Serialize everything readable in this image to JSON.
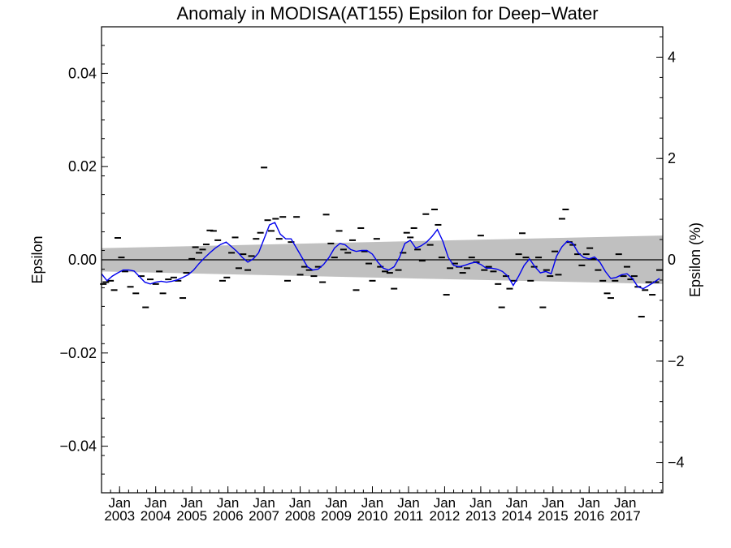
{
  "chart_data": {
    "type": "line",
    "title": "Anomaly in MODISA(AT155) Epsilon for Deep−Water",
    "ylabel": "Epsilon",
    "ylabel_right": "Epsilon (%)",
    "xlabel": "",
    "ylim": [
      -0.05,
      0.05
    ],
    "ylim_right": [
      -4.6,
      4.6
    ],
    "xlim": [
      2002.5,
      2018.04
    ],
    "yticks": [
      {
        "v": 0.04,
        "label": "0.04"
      },
      {
        "v": 0.02,
        "label": "0.02"
      },
      {
        "v": 0.0,
        "label": "0.00"
      },
      {
        "v": -0.02,
        "label": "−0.02"
      },
      {
        "v": -0.04,
        "label": "−0.04"
      }
    ],
    "yticks_right": [
      {
        "v": 4,
        "label": "4"
      },
      {
        "v": 2,
        "label": "2"
      },
      {
        "v": 0,
        "label": "0"
      },
      {
        "v": -2,
        "label": "−2"
      },
      {
        "v": -4,
        "label": "−4"
      }
    ],
    "xticks": [
      {
        "x": 2003.0,
        "month": "Jan",
        "year": "2003"
      },
      {
        "x": 2004.0,
        "month": "Jan",
        "year": "2004"
      },
      {
        "x": 2005.0,
        "month": "Jan",
        "year": "2005"
      },
      {
        "x": 2006.0,
        "month": "Jan",
        "year": "2006"
      },
      {
        "x": 2007.0,
        "month": "Jan",
        "year": "2007"
      },
      {
        "x": 2008.0,
        "month": "Jan",
        "year": "2008"
      },
      {
        "x": 2009.0,
        "month": "Jan",
        "year": "2009"
      },
      {
        "x": 2010.0,
        "month": "Jan",
        "year": "2010"
      },
      {
        "x": 2011.0,
        "month": "Jan",
        "year": "2011"
      },
      {
        "x": 2012.0,
        "month": "Jan",
        "year": "2012"
      },
      {
        "x": 2013.0,
        "month": "Jan",
        "year": "2013"
      },
      {
        "x": 2014.0,
        "month": "Jan",
        "year": "2014"
      },
      {
        "x": 2015.0,
        "month": "Jan",
        "year": "2015"
      },
      {
        "x": 2016.0,
        "month": "Jan",
        "year": "2016"
      },
      {
        "x": 2017.0,
        "month": "Jan",
        "year": "2017"
      }
    ],
    "band": {
      "upper": [
        [
          2002.5,
          0.0025
        ],
        [
          2018.04,
          0.0052
        ]
      ],
      "lower": [
        [
          2002.5,
          -0.0025
        ],
        [
          2018.04,
          -0.0052
        ]
      ],
      "color": "#c0c0c0"
    },
    "zero_line": 0.0,
    "series": [
      {
        "color": "#0000ee",
        "points": [
          [
            2002.5,
            -0.003
          ],
          [
            2002.65,
            -0.0045
          ],
          [
            2002.8,
            -0.0035
          ],
          [
            2002.95,
            -0.0028
          ],
          [
            2003.1,
            -0.0022
          ],
          [
            2003.25,
            -0.0022
          ],
          [
            2003.4,
            -0.0024
          ],
          [
            2003.55,
            -0.0036
          ],
          [
            2003.7,
            -0.0048
          ],
          [
            2003.85,
            -0.0052
          ],
          [
            2004.0,
            -0.0048
          ],
          [
            2004.15,
            -0.0046
          ],
          [
            2004.3,
            -0.0048
          ],
          [
            2004.45,
            -0.0046
          ],
          [
            2004.6,
            -0.0043
          ],
          [
            2004.75,
            -0.0038
          ],
          [
            2004.9,
            -0.0032
          ],
          [
            2005.05,
            -0.0022
          ],
          [
            2005.2,
            -0.0008
          ],
          [
            2005.35,
            0.0004
          ],
          [
            2005.5,
            0.0015
          ],
          [
            2005.65,
            0.0025
          ],
          [
            2005.8,
            0.0033
          ],
          [
            2005.95,
            0.0038
          ],
          [
            2006.1,
            0.0028
          ],
          [
            2006.25,
            0.0018
          ],
          [
            2006.4,
            0.0005
          ],
          [
            2006.55,
            -0.0005
          ],
          [
            2006.7,
            0.0002
          ],
          [
            2006.85,
            0.0015
          ],
          [
            2007.0,
            0.0045
          ],
          [
            2007.15,
            0.0075
          ],
          [
            2007.3,
            0.008
          ],
          [
            2007.45,
            0.0055
          ],
          [
            2007.6,
            0.0045
          ],
          [
            2007.75,
            0.0045
          ],
          [
            2007.9,
            0.0025
          ],
          [
            2008.05,
            0.0005
          ],
          [
            2008.2,
            -0.0015
          ],
          [
            2008.35,
            -0.0022
          ],
          [
            2008.5,
            -0.002
          ],
          [
            2008.65,
            -0.001
          ],
          [
            2008.8,
            0.0005
          ],
          [
            2008.95,
            0.0025
          ],
          [
            2009.1,
            0.0035
          ],
          [
            2009.25,
            0.0032
          ],
          [
            2009.4,
            0.0022
          ],
          [
            2009.55,
            0.0018
          ],
          [
            2009.7,
            0.002
          ],
          [
            2009.85,
            0.002
          ],
          [
            2010.0,
            0.0012
          ],
          [
            2010.15,
            -0.0005
          ],
          [
            2010.3,
            -0.0018
          ],
          [
            2010.45,
            -0.0022
          ],
          [
            2010.6,
            -0.0015
          ],
          [
            2010.75,
            0.0005
          ],
          [
            2010.9,
            0.0035
          ],
          [
            2011.05,
            0.0042
          ],
          [
            2011.2,
            0.0025
          ],
          [
            2011.35,
            0.003
          ],
          [
            2011.5,
            0.0038
          ],
          [
            2011.65,
            0.005
          ],
          [
            2011.8,
            0.0065
          ],
          [
            2011.95,
            0.004
          ],
          [
            2012.1,
            0.0005
          ],
          [
            2012.25,
            -0.0012
          ],
          [
            2012.4,
            -0.0015
          ],
          [
            2012.55,
            -0.0012
          ],
          [
            2012.7,
            -0.0008
          ],
          [
            2012.85,
            -0.0005
          ],
          [
            2013.0,
            -0.001
          ],
          [
            2013.15,
            -0.0018
          ],
          [
            2013.3,
            -0.0018
          ],
          [
            2013.45,
            -0.002
          ],
          [
            2013.6,
            -0.0025
          ],
          [
            2013.75,
            -0.0035
          ],
          [
            2013.9,
            -0.0055
          ],
          [
            2014.05,
            -0.0035
          ],
          [
            2014.2,
            -0.0012
          ],
          [
            2014.35,
            0.0002
          ],
          [
            2014.5,
            -0.0015
          ],
          [
            2014.65,
            -0.0028
          ],
          [
            2014.8,
            -0.0025
          ],
          [
            2014.95,
            -0.003
          ],
          [
            2015.1,
            0.0008
          ],
          [
            2015.25,
            0.0028
          ],
          [
            2015.4,
            0.004
          ],
          [
            2015.55,
            0.0035
          ],
          [
            2015.7,
            0.0015
          ],
          [
            2015.85,
            0.0005
          ],
          [
            2016.0,
            0.0002
          ],
          [
            2016.15,
            0.0006
          ],
          [
            2016.3,
            -0.0005
          ],
          [
            2016.45,
            -0.0025
          ],
          [
            2016.6,
            -0.004
          ],
          [
            2016.75,
            -0.0038
          ],
          [
            2016.9,
            -0.0032
          ],
          [
            2017.05,
            -0.003
          ],
          [
            2017.2,
            -0.004
          ],
          [
            2017.35,
            -0.0058
          ],
          [
            2017.5,
            -0.0062
          ],
          [
            2017.65,
            -0.0055
          ],
          [
            2017.8,
            -0.0048
          ],
          [
            2017.95,
            -0.004
          ]
        ]
      }
    ],
    "scatter_points": [
      [
        2002.55,
        -0.0052
      ],
      [
        2002.62,
        -0.0048
      ],
      [
        2002.75,
        -0.0045
      ],
      [
        2002.85,
        -0.0065
      ],
      [
        2002.95,
        0.0047
      ],
      [
        2003.05,
        0.0005
      ],
      [
        2003.15,
        -0.0025
      ],
      [
        2003.3,
        -0.0058
      ],
      [
        2003.45,
        -0.0072
      ],
      [
        2003.6,
        -0.0035
      ],
      [
        2003.72,
        -0.0102
      ],
      [
        2003.85,
        -0.0042
      ],
      [
        2004.0,
        -0.0052
      ],
      [
        2004.1,
        -0.0025
      ],
      [
        2004.2,
        -0.0072
      ],
      [
        2004.35,
        -0.0042
      ],
      [
        2004.5,
        -0.0038
      ],
      [
        2004.62,
        -0.0045
      ],
      [
        2004.75,
        -0.0082
      ],
      [
        2004.85,
        -0.0028
      ],
      [
        2005.0,
        0.0002
      ],
      [
        2005.1,
        0.0027
      ],
      [
        2005.2,
        0.0015
      ],
      [
        2005.3,
        0.0022
      ],
      [
        2005.4,
        0.0033
      ],
      [
        2005.5,
        0.0063
      ],
      [
        2005.6,
        0.0062
      ],
      [
        2005.72,
        0.0042
      ],
      [
        2005.85,
        -0.0045
      ],
      [
        2005.97,
        -0.0038
      ],
      [
        2006.1,
        0.0015
      ],
      [
        2006.2,
        0.0048
      ],
      [
        2006.3,
        -0.0018
      ],
      [
        2006.42,
        0.0012
      ],
      [
        2006.55,
        -0.0022
      ],
      [
        2006.65,
        0.0008
      ],
      [
        2006.78,
        0.0045
      ],
      [
        2006.9,
        0.0058
      ],
      [
        2007.0,
        0.0198
      ],
      [
        2007.1,
        0.0085
      ],
      [
        2007.2,
        0.0062
      ],
      [
        2007.32,
        0.0088
      ],
      [
        2007.42,
        0.0045
      ],
      [
        2007.52,
        0.0092
      ],
      [
        2007.65,
        -0.0045
      ],
      [
        2007.75,
        0.0038
      ],
      [
        2007.9,
        0.0092
      ],
      [
        2008.0,
        -0.0032
      ],
      [
        2008.12,
        -0.0015
      ],
      [
        2008.25,
        -0.0022
      ],
      [
        2008.38,
        -0.0035
      ],
      [
        2008.5,
        -0.0015
      ],
      [
        2008.62,
        -0.0048
      ],
      [
        2008.72,
        0.0097
      ],
      [
        2008.85,
        0.0035
      ],
      [
        2008.95,
        0.0005
      ],
      [
        2009.08,
        0.0062
      ],
      [
        2009.2,
        0.0022
      ],
      [
        2009.32,
        0.0015
      ],
      [
        2009.45,
        0.0042
      ],
      [
        2009.55,
        -0.0065
      ],
      [
        2009.68,
        0.0068
      ],
      [
        2009.78,
        0.0018
      ],
      [
        2009.9,
        -0.0008
      ],
      [
        2010.0,
        -0.0045
      ],
      [
        2010.12,
        0.0045
      ],
      [
        2010.22,
        -0.0015
      ],
      [
        2010.35,
        -0.0025
      ],
      [
        2010.48,
        -0.0028
      ],
      [
        2010.6,
        -0.0062
      ],
      [
        2010.72,
        -0.0022
      ],
      [
        2010.85,
        0.0015
      ],
      [
        2010.95,
        0.0058
      ],
      [
        2011.05,
        0.0048
      ],
      [
        2011.15,
        0.0068
      ],
      [
        2011.25,
        0.0022
      ],
      [
        2011.38,
        -0.0002
      ],
      [
        2011.48,
        0.0098
      ],
      [
        2011.6,
        0.0032
      ],
      [
        2011.72,
        0.0108
      ],
      [
        2011.82,
        0.0075
      ],
      [
        2011.92,
        0.0005
      ],
      [
        2012.05,
        -0.0075
      ],
      [
        2012.15,
        -0.0018
      ],
      [
        2012.28,
        -0.0008
      ],
      [
        2012.4,
        -0.0015
      ],
      [
        2012.5,
        -0.0028
      ],
      [
        2012.62,
        -0.0018
      ],
      [
        2012.75,
        0.0005
      ],
      [
        2012.88,
        -0.0005
      ],
      [
        2013.0,
        0.0052
      ],
      [
        2013.1,
        -0.0022
      ],
      [
        2013.22,
        -0.0015
      ],
      [
        2013.35,
        -0.0025
      ],
      [
        2013.48,
        -0.0052
      ],
      [
        2013.58,
        -0.0102
      ],
      [
        2013.7,
        -0.0035
      ],
      [
        2013.8,
        -0.0062
      ],
      [
        2013.92,
        -0.0045
      ],
      [
        2014.05,
        0.0012
      ],
      [
        2014.15,
        0.0057
      ],
      [
        2014.25,
        0.0005
      ],
      [
        2014.38,
        -0.0045
      ],
      [
        2014.48,
        -0.0015
      ],
      [
        2014.6,
        0.0005
      ],
      [
        2014.72,
        -0.0102
      ],
      [
        2014.82,
        -0.0022
      ],
      [
        2014.92,
        -0.0035
      ],
      [
        2015.05,
        0.0018
      ],
      [
        2015.15,
        -0.0032
      ],
      [
        2015.25,
        0.0088
      ],
      [
        2015.35,
        0.0108
      ],
      [
        2015.45,
        0.0038
      ],
      [
        2015.55,
        0.0032
      ],
      [
        2015.68,
        0.0012
      ],
      [
        2015.8,
        -0.0012
      ],
      [
        2015.92,
        0.0012
      ],
      [
        2016.02,
        0.0025
      ],
      [
        2016.12,
        0.0002
      ],
      [
        2016.25,
        -0.0022
      ],
      [
        2016.38,
        -0.0045
      ],
      [
        2016.5,
        -0.0072
      ],
      [
        2016.6,
        -0.0082
      ],
      [
        2016.72,
        -0.0045
      ],
      [
        2016.82,
        0.0012
      ],
      [
        2016.95,
        -0.0035
      ],
      [
        2017.05,
        -0.0015
      ],
      [
        2017.15,
        -0.0042
      ],
      [
        2017.25,
        -0.0035
      ],
      [
        2017.35,
        -0.0058
      ],
      [
        2017.45,
        -0.0122
      ],
      [
        2017.55,
        -0.0065
      ],
      [
        2017.65,
        -0.0048
      ],
      [
        2017.75,
        -0.0075
      ],
      [
        2017.85,
        -0.0048
      ],
      [
        2017.95,
        -0.0022
      ]
    ]
  }
}
